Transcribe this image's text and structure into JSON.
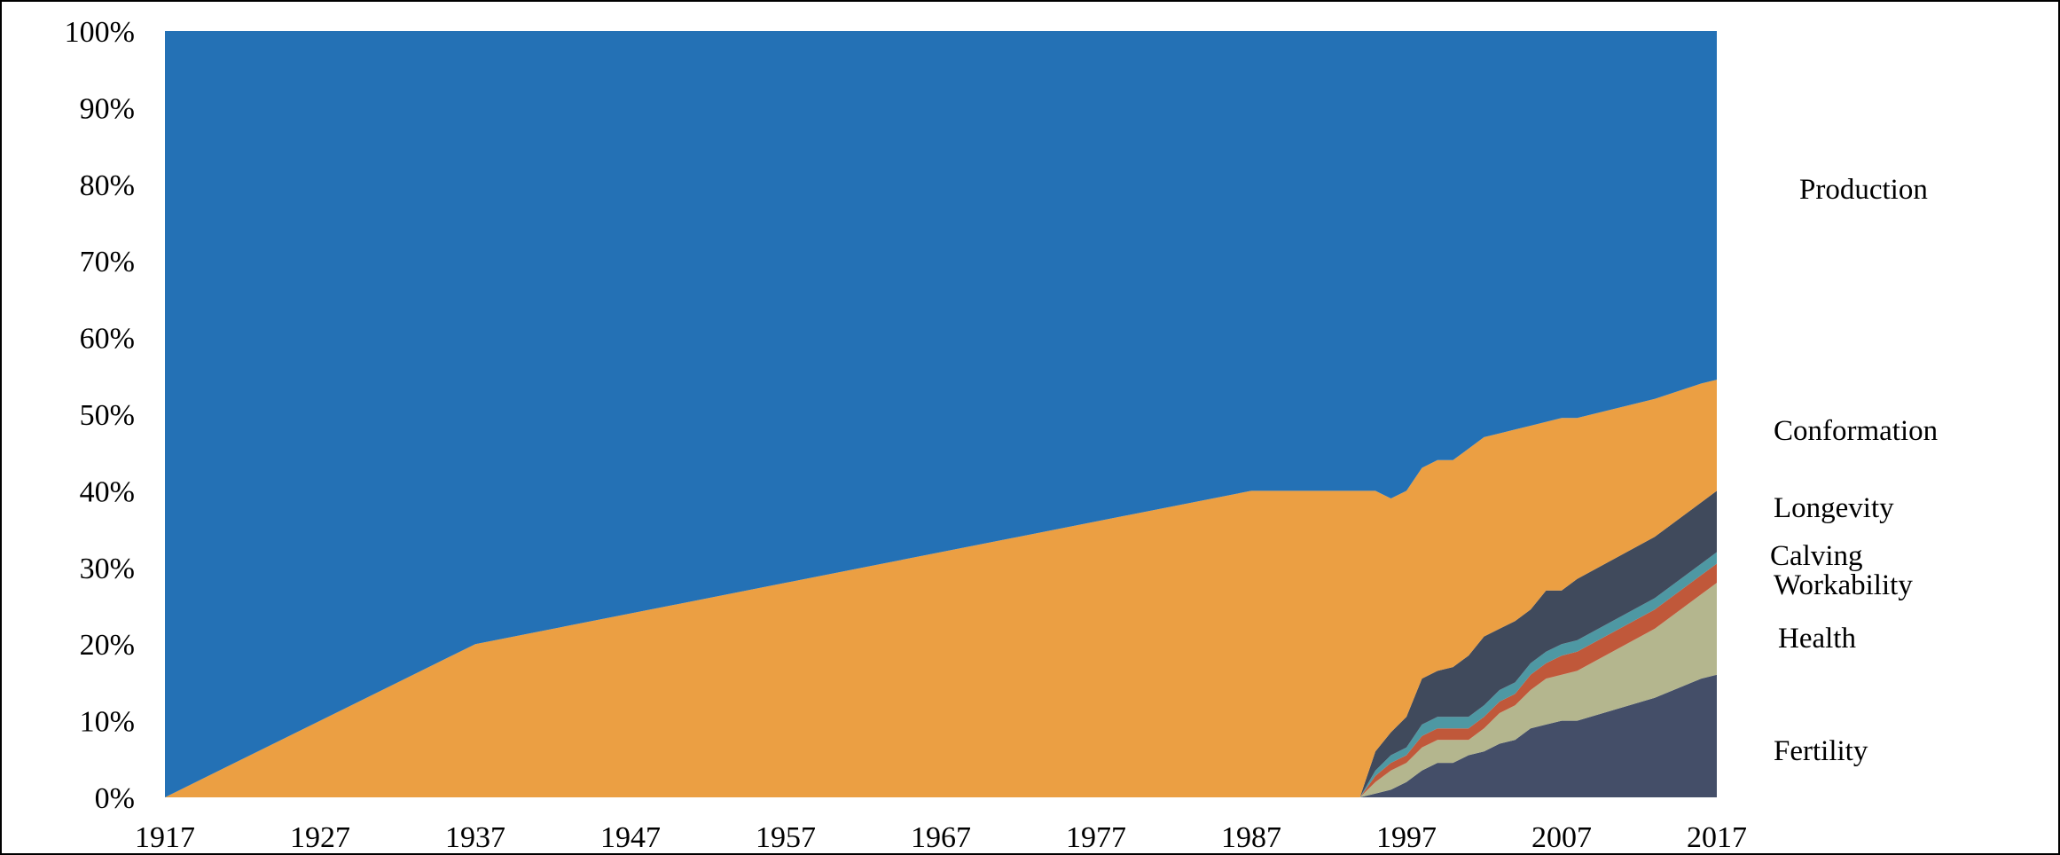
{
  "chart_data": {
    "type": "area",
    "stacked": true,
    "normalized_percent": true,
    "x": [
      1917,
      1937,
      1987,
      1994,
      1995,
      1996,
      1997,
      1998,
      1999,
      2000,
      2001,
      2002,
      2003,
      2004,
      2005,
      2006,
      2007,
      2008,
      2013,
      2016,
      2017
    ],
    "xlim": [
      1917,
      2017
    ],
    "x_ticks": [
      1917,
      1927,
      1937,
      1947,
      1957,
      1967,
      1977,
      1987,
      1997,
      2007,
      2017
    ],
    "y_tick_labels": [
      "0%",
      "10%",
      "20%",
      "30%",
      "40%",
      "50%",
      "60%",
      "70%",
      "80%",
      "90%",
      "100%"
    ],
    "ylim": [
      0,
      100
    ],
    "grid": false,
    "legend_position": "right",
    "series": [
      {
        "name": "Fertility",
        "color": "#444e68",
        "values": [
          0,
          0,
          0,
          0,
          0.5,
          1,
          2,
          3.5,
          4.5,
          4.5,
          5.5,
          6,
          7,
          7.5,
          9,
          9.5,
          10,
          10,
          13,
          15.5,
          16
        ]
      },
      {
        "name": "Health",
        "color": "#b4b68e",
        "values": [
          0,
          0,
          0,
          0,
          1.5,
          2.5,
          2.5,
          3,
          3,
          3,
          2,
          3,
          4,
          4.5,
          5,
          6,
          6,
          6.5,
          9,
          11,
          12
        ]
      },
      {
        "name": "Workability",
        "color": "#c0583a",
        "values": [
          0,
          0,
          0,
          0,
          0.8,
          1,
          1,
          1.5,
          1.5,
          1.5,
          1.5,
          1.5,
          1.5,
          1.5,
          2,
          2,
          2.5,
          2.5,
          2.5,
          2.5,
          2.5
        ]
      },
      {
        "name": "Calving",
        "color": "#4e98a3",
        "values": [
          0,
          0,
          0,
          0,
          0.7,
          1,
          1,
          1.5,
          1.5,
          1.5,
          1.5,
          1.5,
          1.5,
          1.5,
          1.5,
          1.5,
          1.5,
          1.5,
          1.5,
          1.5,
          1.5
        ]
      },
      {
        "name": "Longevity",
        "color": "#404a5c",
        "values": [
          0,
          0,
          0,
          0,
          2.5,
          3,
          4,
          6,
          6,
          6.5,
          8,
          9,
          8,
          8,
          7,
          8,
          7,
          8,
          8,
          8,
          8
        ]
      },
      {
        "name": "Conformation",
        "color": "#eb9f43",
        "values": [
          0,
          20,
          40,
          40,
          34,
          30.5,
          29.5,
          27.5,
          27.5,
          27,
          27,
          26,
          25.5,
          25,
          24,
          22,
          22.5,
          21,
          18,
          15.5,
          14.5
        ]
      },
      {
        "name": "Production",
        "color": "#2471b5",
        "values": [
          100,
          80,
          60,
          60,
          60,
          61,
          60,
          57,
          56,
          56,
          54.5,
          53,
          52.5,
          52,
          51.5,
          51,
          50.5,
          50.5,
          48,
          46,
          45.5
        ]
      }
    ],
    "legend_labels": [
      "Production",
      "Conformation",
      "Longevity",
      "Calving",
      "Workability",
      "Health",
      "Fertility"
    ]
  }
}
